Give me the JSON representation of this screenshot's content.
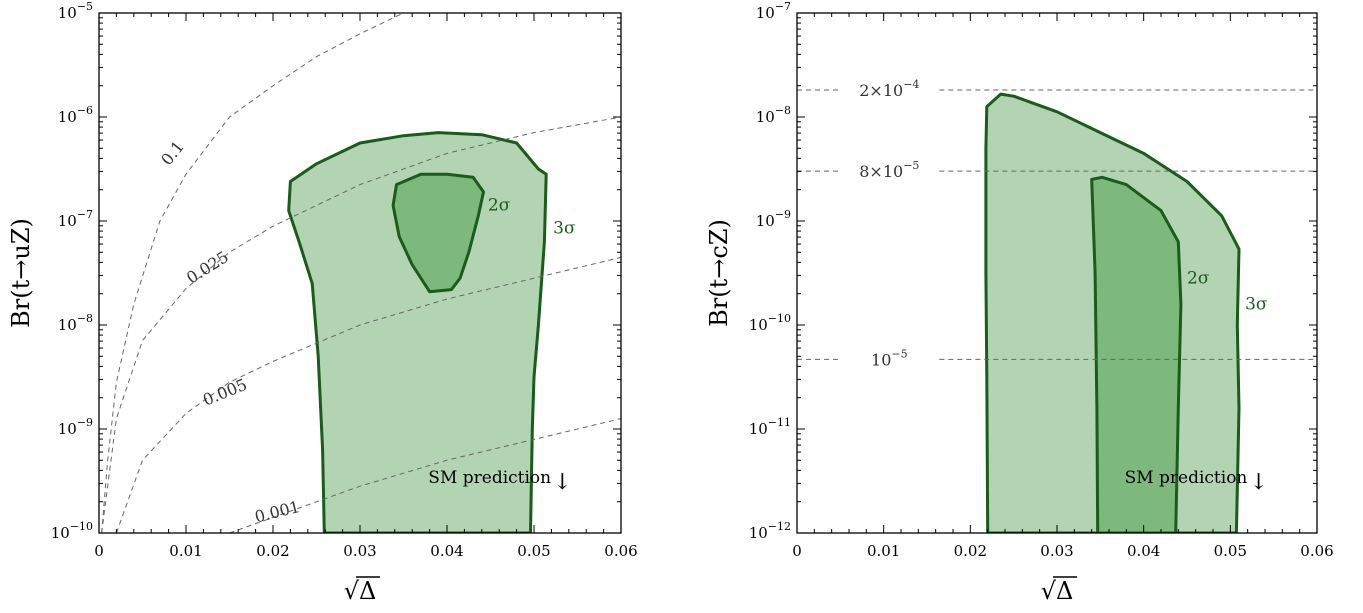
{
  "chart_data": [
    {
      "type": "contour",
      "xlabel": "√Δ",
      "ylabel": "Br(t→uZ)",
      "xlim": [
        0,
        0.06
      ],
      "ylim_log10": [
        -10,
        -5
      ],
      "yscale": "log",
      "x_ticks": [
        {
          "value": 0,
          "label": "0"
        },
        {
          "value": 0.01,
          "label": "0.01"
        },
        {
          "value": 0.02,
          "label": "0.02"
        },
        {
          "value": 0.03,
          "label": "0.03"
        },
        {
          "value": 0.04,
          "label": "0.04"
        },
        {
          "value": 0.05,
          "label": "0.05"
        },
        {
          "value": 0.06,
          "label": "0.06"
        }
      ],
      "y_ticks": [
        {
          "log10": -10,
          "base": "10",
          "exp": "−10"
        },
        {
          "log10": -9,
          "base": "10",
          "exp": "−9"
        },
        {
          "log10": -8,
          "base": "10",
          "exp": "−8"
        },
        {
          "log10": -7,
          "base": "10",
          "exp": "−7"
        },
        {
          "log10": -6,
          "base": "10",
          "exp": "−6"
        },
        {
          "log10": -5,
          "base": "10",
          "exp": "−5"
        }
      ],
      "regions": [
        {
          "label": "3σ",
          "fill": "#b3d4b3",
          "stroke": "#1a5c1a",
          "label_at": [
            0.0522,
            -7.12
          ],
          "points": [
            [
              0.0259,
              -10
            ],
            [
              0.0257,
              -9.2
            ],
            [
              0.0252,
              -8.3
            ],
            [
              0.0245,
              -7.6
            ],
            [
              0.023,
              -7.2
            ],
            [
              0.0218,
              -6.9
            ],
            [
              0.022,
              -6.62
            ],
            [
              0.025,
              -6.45
            ],
            [
              0.03,
              -6.25
            ],
            [
              0.035,
              -6.18
            ],
            [
              0.039,
              -6.15
            ],
            [
              0.044,
              -6.17
            ],
            [
              0.048,
              -6.25
            ],
            [
              0.0505,
              -6.5
            ],
            [
              0.0514,
              -6.55
            ],
            [
              0.0512,
              -7.2
            ],
            [
              0.0505,
              -8.0
            ],
            [
              0.05,
              -8.5
            ],
            [
              0.0498,
              -9.0
            ],
            [
              0.0496,
              -10
            ]
          ]
        },
        {
          "label": "2σ",
          "fill": "#7db87d",
          "stroke": "#1a5c1a",
          "label_at": [
            0.0447,
            -6.9
          ],
          "points": [
            [
              0.0342,
              -6.65
            ],
            [
              0.037,
              -6.55
            ],
            [
              0.04,
              -6.55
            ],
            [
              0.043,
              -6.58
            ],
            [
              0.0442,
              -6.72
            ],
            [
              0.0436,
              -6.95
            ],
            [
              0.0425,
              -7.3
            ],
            [
              0.0415,
              -7.55
            ],
            [
              0.0405,
              -7.66
            ],
            [
              0.038,
              -7.68
            ],
            [
              0.036,
              -7.42
            ],
            [
              0.0345,
              -7.15
            ],
            [
              0.0338,
              -6.85
            ]
          ]
        }
      ],
      "reference_curves": [
        {
          "label": "0.1",
          "label_at": [
            0.0085,
            -6.35
          ],
          "label_angle": -52,
          "points": [
            [
              0.0003,
              -10
            ],
            [
              0.001,
              -9.3
            ],
            [
              0.002,
              -8.55
            ],
            [
              0.004,
              -7.8
            ],
            [
              0.007,
              -7.0
            ],
            [
              0.01,
              -6.55
            ],
            [
              0.015,
              -6.0
            ],
            [
              0.02,
              -5.7
            ],
            [
              0.025,
              -5.42
            ],
            [
              0.03,
              -5.2
            ],
            [
              0.035,
              -5.0
            ]
          ]
        },
        {
          "label": "0.025",
          "label_at": [
            0.0125,
            -7.45
          ],
          "label_angle": -32,
          "points": [
            [
              0.0003,
              -10
            ],
            [
              0.002,
              -8.9
            ],
            [
              0.005,
              -8.15
            ],
            [
              0.01,
              -7.65
            ],
            [
              0.015,
              -7.3
            ],
            [
              0.02,
              -7.05
            ],
            [
              0.03,
              -6.65
            ],
            [
              0.04,
              -6.35
            ],
            [
              0.05,
              -6.15
            ],
            [
              0.06,
              -6.0
            ]
          ]
        },
        {
          "label": "0.005",
          "label_at": [
            0.0145,
            -8.65
          ],
          "label_angle": -22,
          "points": [
            [
              0.002,
              -10
            ],
            [
              0.005,
              -9.3
            ],
            [
              0.01,
              -8.85
            ],
            [
              0.015,
              -8.55
            ],
            [
              0.02,
              -8.35
            ],
            [
              0.03,
              -8.0
            ],
            [
              0.04,
              -7.75
            ],
            [
              0.05,
              -7.55
            ],
            [
              0.06,
              -7.35
            ]
          ]
        },
        {
          "label": "0.001",
          "label_at": [
            0.0205,
            -9.8
          ],
          "label_angle": -14,
          "points": [
            [
              0.015,
              -10
            ],
            [
              0.02,
              -9.85
            ],
            [
              0.03,
              -9.55
            ],
            [
              0.04,
              -9.3
            ],
            [
              0.05,
              -9.1
            ],
            [
              0.06,
              -8.9
            ]
          ]
        }
      ],
      "annotation": {
        "text": "SM prediction",
        "arrow": "↓",
        "at": [
          0.0522,
          -9.52
        ]
      }
    },
    {
      "type": "contour",
      "xlabel": "√Δ",
      "ylabel": "Br(t→cZ)",
      "xlim": [
        0,
        0.06
      ],
      "ylim_log10": [
        -12,
        -7
      ],
      "yscale": "log",
      "x_ticks": [
        {
          "value": 0,
          "label": "0"
        },
        {
          "value": 0.01,
          "label": "0.01"
        },
        {
          "value": 0.02,
          "label": "0.02"
        },
        {
          "value": 0.03,
          "label": "0.03"
        },
        {
          "value": 0.04,
          "label": "0.04"
        },
        {
          "value": 0.05,
          "label": "0.05"
        },
        {
          "value": 0.06,
          "label": "0.06"
        }
      ],
      "y_ticks": [
        {
          "log10": -12,
          "base": "10",
          "exp": "−12"
        },
        {
          "log10": -11,
          "base": "10",
          "exp": "−11"
        },
        {
          "log10": -10,
          "base": "10",
          "exp": "−10"
        },
        {
          "log10": -9,
          "base": "10",
          "exp": "−9"
        },
        {
          "log10": -8,
          "base": "10",
          "exp": "−8"
        },
        {
          "log10": -7,
          "base": "10",
          "exp": "−7"
        }
      ],
      "regions": [
        {
          "label": "3σ",
          "fill": "#b3d4b3",
          "stroke": "#1a5c1a",
          "label_at": [
            0.0517,
            -9.85
          ],
          "points": [
            [
              0.022,
              -12
            ],
            [
              0.0219,
              -10.5
            ],
            [
              0.0218,
              -9.5
            ],
            [
              0.0218,
              -8.3
            ],
            [
              0.0219,
              -7.9
            ],
            [
              0.0235,
              -7.78
            ],
            [
              0.025,
              -7.8
            ],
            [
              0.03,
              -7.95
            ],
            [
              0.035,
              -8.15
            ],
            [
              0.04,
              -8.35
            ],
            [
              0.045,
              -8.62
            ],
            [
              0.049,
              -8.95
            ],
            [
              0.051,
              -9.27
            ],
            [
              0.0508,
              -10.0
            ],
            [
              0.051,
              -10.8
            ],
            [
              0.0507,
              -12
            ]
          ]
        },
        {
          "label": "2σ",
          "fill": "#7db87d",
          "stroke": "#1a5c1a",
          "label_at": [
            0.045,
            -9.6
          ],
          "points": [
            [
              0.0347,
              -12
            ],
            [
              0.0346,
              -10.8
            ],
            [
              0.0344,
              -9.5
            ],
            [
              0.034,
              -8.6
            ],
            [
              0.0352,
              -8.58
            ],
            [
              0.038,
              -8.65
            ],
            [
              0.042,
              -8.9
            ],
            [
              0.044,
              -9.2
            ],
            [
              0.0443,
              -9.8
            ],
            [
              0.044,
              -10.8
            ],
            [
              0.0437,
              -12
            ]
          ]
        }
      ],
      "reference_lines": [
        {
          "label": "2×10",
          "exp": "−4",
          "log10": -7.74,
          "label_at": 0.0095
        },
        {
          "label": "8×10",
          "exp": "−5",
          "log10": -8.52,
          "label_at": 0.0095
        },
        {
          "label": "10",
          "exp": "−5",
          "log10": -10.33,
          "label_at": 0.0095
        }
      ],
      "annotation": {
        "text": "SM prediction",
        "arrow": "↓",
        "at": [
          0.0522,
          -11.52
        ]
      }
    }
  ]
}
